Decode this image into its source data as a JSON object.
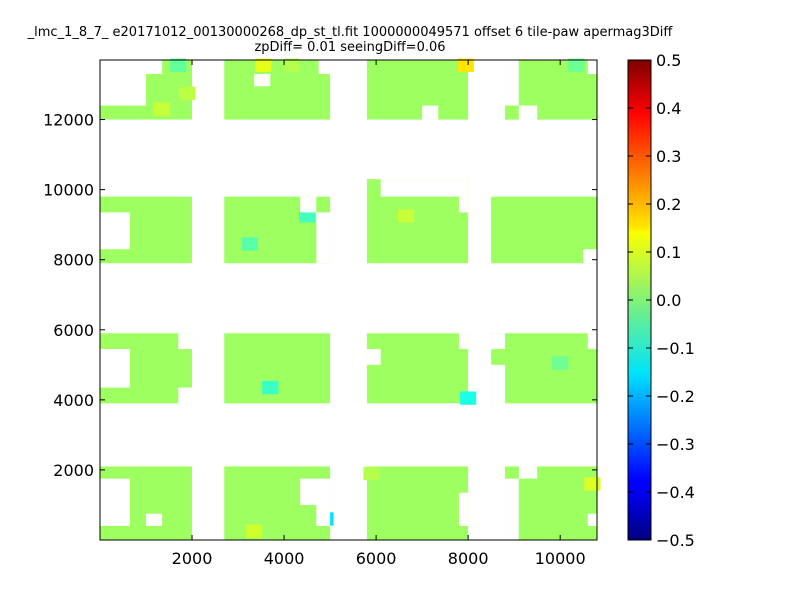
{
  "chart_data": {
    "type": "heatmap",
    "title_line1": "_lmc_1_8_7_ e20171012_00130000268_dp_st_tl.fit 1000000049571 offset 6 tile-paw apermag3Diff",
    "title_line2": "zpDiff= 0.01 seeingDiff=0.06",
    "xlim": [
      0,
      10800
    ],
    "ylim": [
      0,
      13700
    ],
    "x_ticks": [
      2000,
      4000,
      6000,
      8000,
      10000
    ],
    "x_tick_labels": [
      "2000",
      "4000",
      "6000",
      "8000",
      "10000"
    ],
    "y_ticks": [
      2000,
      4000,
      6000,
      8000,
      10000,
      12000
    ],
    "y_tick_labels": [
      "2000",
      "4000",
      "6000",
      "8000",
      "10000",
      "12000"
    ],
    "colorbar": {
      "range": [
        -0.5,
        0.5
      ],
      "colormap": "jet",
      "ticks": [
        0.5,
        0.4,
        0.3,
        0.2,
        0.1,
        0.0,
        -0.1,
        -0.2,
        -0.3,
        -0.4,
        -0.5
      ],
      "tick_labels": [
        "0.5",
        "0.4",
        "0.3",
        "0.2",
        "0.1",
        "0.0",
        "−0.1",
        "−0.2",
        "−0.3",
        "−0.4",
        "−0.5"
      ]
    },
    "grid": false,
    "default_value": 0.03,
    "blocks": [
      {
        "x": [
          0,
          2000
        ],
        "y": [
          12000,
          13700
        ],
        "missing": [
          [
            0,
            1000,
            12400,
            13700
          ],
          [
            1000,
            1350,
            13300,
            13700
          ]
        ]
      },
      {
        "x": [
          2700,
          5000
        ],
        "y": [
          12000,
          13700
        ],
        "missing": [
          [
            3350,
            3700,
            12950,
            13300
          ],
          [
            4750,
            5000,
            13300,
            13700
          ]
        ]
      },
      {
        "x": [
          5800,
          8000
        ],
        "y": [
          12000,
          13700
        ],
        "missing": [
          [
            7000,
            7350,
            12000,
            12400
          ]
        ]
      },
      {
        "x": [
          8800,
          10800
        ],
        "y": [
          12000,
          13700
        ],
        "missing": [
          [
            8800,
            9100,
            12400,
            13700
          ],
          [
            9100,
            9500,
            12000,
            12400
          ],
          [
            10600,
            10800,
            13300,
            13700
          ]
        ]
      },
      {
        "x": [
          0,
          2000
        ],
        "y": [
          7900,
          9800
        ],
        "missing": [
          [
            0,
            650,
            8300,
            9350
          ]
        ]
      },
      {
        "x": [
          2700,
          5000
        ],
        "y": [
          7900,
          9800
        ],
        "missing": [
          [
            4350,
            4700,
            9350,
            9800
          ],
          [
            4700,
            5000,
            7900,
            9350
          ]
        ]
      },
      {
        "x": [
          5800,
          8000
        ],
        "y": [
          7900,
          10300
        ],
        "missing": [
          [
            6100,
            8000,
            9800,
            10300
          ],
          [
            7800,
            8000,
            9350,
            9800
          ]
        ]
      },
      {
        "x": [
          8500,
          10800
        ],
        "y": [
          7900,
          9800
        ],
        "missing": [
          [
            10500,
            10800,
            7900,
            8300
          ]
        ]
      },
      {
        "x": [
          0,
          2000
        ],
        "y": [
          3900,
          5900
        ],
        "missing": [
          [
            0,
            650,
            4350,
            5450
          ],
          [
            1700,
            2000,
            5450,
            5900
          ],
          [
            1700,
            2000,
            3900,
            4350
          ]
        ]
      },
      {
        "x": [
          2700,
          5000
        ],
        "y": [
          3900,
          5900
        ],
        "missing": []
      },
      {
        "x": [
          5800,
          8000
        ],
        "y": [
          3900,
          5900
        ],
        "missing": [
          [
            5800,
            6100,
            5000,
            5450
          ],
          [
            7800,
            8000,
            5450,
            5900
          ]
        ]
      },
      {
        "x": [
          8500,
          10800
        ],
        "y": [
          3900,
          5900
        ],
        "missing": [
          [
            8500,
            8800,
            3900,
            5000
          ],
          [
            8500,
            8800,
            5450,
            5900
          ],
          [
            10600,
            10800,
            5450,
            5900
          ]
        ]
      },
      {
        "x": [
          0,
          2000
        ],
        "y": [
          0,
          2100
        ],
        "missing": [
          [
            0,
            650,
            400,
            1750
          ],
          [
            1000,
            1350,
            400,
            750
          ]
        ]
      },
      {
        "x": [
          2700,
          5000
        ],
        "y": [
          0,
          2100
        ],
        "missing": [
          [
            4350,
            5000,
            1000,
            1750
          ],
          [
            4700,
            5000,
            400,
            1000
          ]
        ]
      },
      {
        "x": [
          5800,
          8000
        ],
        "y": [
          0,
          2100
        ],
        "missing": [
          [
            7800,
            8000,
            400,
            1350
          ]
        ]
      },
      {
        "x": [
          8800,
          10800
        ],
        "y": [
          0,
          2100
        ],
        "missing": [
          [
            8800,
            9100,
            0,
            1750
          ],
          [
            9100,
            9500,
            1750,
            2100
          ],
          [
            10600,
            10800,
            400,
            750
          ]
        ]
      }
    ],
    "cell_values": [
      {
        "x": 1700,
        "y": 13550,
        "v": -0.03
      },
      {
        "x": 3550,
        "y": 13550,
        "v": 0.1
      },
      {
        "x": 4150,
        "y": 13550,
        "v": 0.05
      },
      {
        "x": 7950,
        "y": 13550,
        "v": 0.15
      },
      {
        "x": 10350,
        "y": 13550,
        "v": -0.02
      },
      {
        "x": 1900,
        "y": 12750,
        "v": 0.06
      },
      {
        "x": 1350,
        "y": 12300,
        "v": 0.07
      },
      {
        "x": 6650,
        "y": 9250,
        "v": 0.07
      },
      {
        "x": 4500,
        "y": 9250,
        "v": -0.06
      },
      {
        "x": 3250,
        "y": 8450,
        "v": -0.04
      },
      {
        "x": 3700,
        "y": 4350,
        "v": -0.07
      },
      {
        "x": 8000,
        "y": 4050,
        "v": -0.1
      },
      {
        "x": 10000,
        "y": 5050,
        "v": -0.02
      },
      {
        "x": 3350,
        "y": 250,
        "v": 0.08
      },
      {
        "x": 4900,
        "y": 600,
        "v": -0.15
      },
      {
        "x": 10700,
        "y": 1600,
        "v": 0.09
      },
      {
        "x": 5900,
        "y": 1900,
        "v": 0.05
      }
    ]
  }
}
